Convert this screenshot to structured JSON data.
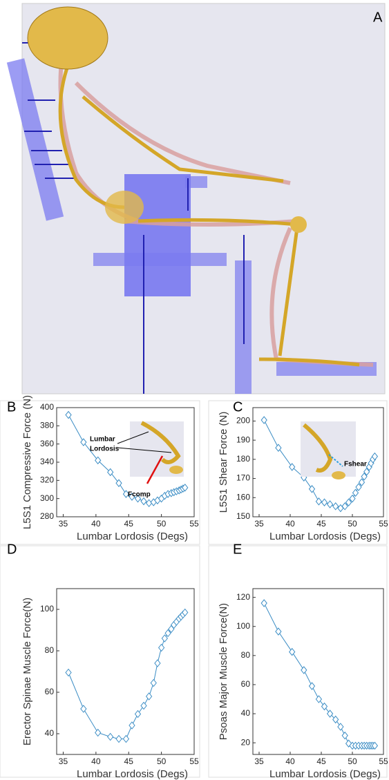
{
  "panel_label": "A",
  "chart_data": [
    {
      "type": "line",
      "panel_label": "B",
      "xlabel": "Lumbar Lordosis (Degs)",
      "ylabel": "L5S1 Compressive Force (N)",
      "color": "#3a8cc4",
      "x": [
        35.8,
        38.1,
        40.3,
        42.2,
        43.5,
        44.6,
        45.5,
        46.4,
        47.3,
        48.1,
        48.8,
        49.4,
        50.0,
        50.5,
        51.0,
        51.5,
        51.9,
        52.3,
        52.7,
        53.0,
        53.3,
        53.6
      ],
      "values": [
        392,
        362,
        342,
        329,
        317,
        305,
        302,
        300,
        297,
        295,
        296,
        298,
        300,
        303,
        305,
        306,
        307,
        308,
        309,
        310,
        311,
        312
      ],
      "xlim": [
        34,
        55
      ],
      "xticks": [
        35,
        40,
        45,
        50,
        55
      ],
      "ylim": [
        280,
        400
      ],
      "yticks": [
        280,
        300,
        320,
        340,
        360,
        380,
        400
      ],
      "annotations": [
        "Lumbar",
        "Lordosis",
        "Fcomp"
      ]
    },
    {
      "type": "line",
      "panel_label": "C",
      "xlabel": "Lumbar Lordosis (Degs)",
      "ylabel": "L5S1 Shear Force (N)",
      "color": "#3a8cc4",
      "x": [
        35.8,
        38.1,
        40.3,
        42.2,
        43.5,
        44.6,
        45.5,
        46.4,
        47.3,
        48.1,
        48.8,
        49.4,
        50.0,
        50.5,
        51.0,
        51.5,
        51.9,
        52.3,
        52.7,
        53.0,
        53.3,
        53.6
      ],
      "values": [
        200.5,
        186,
        176,
        170.5,
        164.5,
        158,
        157.5,
        156.5,
        155.5,
        154.5,
        155.5,
        157.5,
        159.5,
        162.5,
        165.5,
        168,
        171,
        173.5,
        176,
        178,
        180,
        181.5
      ],
      "xlim": [
        34,
        55
      ],
      "xticks": [
        35,
        40,
        45,
        50,
        55
      ],
      "ylim": [
        150,
        207
      ],
      "yticks": [
        150,
        160,
        170,
        180,
        190,
        200
      ],
      "annotations": [
        "Fshear"
      ]
    },
    {
      "type": "line",
      "panel_label": "D",
      "xlabel": "Lumbar Lordosis (Degs)",
      "ylabel": "Erector Spinae Muscle Force(N)",
      "color": "#3a8cc4",
      "x": [
        35.8,
        38.1,
        40.3,
        42.2,
        43.5,
        44.6,
        45.5,
        46.4,
        47.3,
        48.1,
        48.8,
        49.4,
        50.0,
        50.5,
        51.0,
        51.5,
        51.9,
        52.3,
        52.7,
        53.0,
        53.3,
        53.6
      ],
      "values": [
        69.5,
        52,
        40.5,
        38.5,
        37.5,
        37.5,
        44,
        49.5,
        53.5,
        58,
        64.5,
        74,
        81.5,
        86,
        88.5,
        90.5,
        92.5,
        94,
        95.5,
        96.5,
        97.5,
        98.5
      ],
      "xlim": [
        34,
        55
      ],
      "xticks": [
        35,
        40,
        45,
        50,
        55
      ],
      "ylim": [
        30,
        110
      ],
      "yticks": [
        40,
        60,
        80,
        100
      ]
    },
    {
      "type": "line",
      "panel_label": "E",
      "xlabel": "Lumbar Lordosis (Degs)",
      "ylabel": "Psoas Major Muscle Force(N)",
      "color": "#3a8cc4",
      "x": [
        35.8,
        38.1,
        40.3,
        42.2,
        43.5,
        44.6,
        45.5,
        46.4,
        47.3,
        48.1,
        48.8,
        49.4,
        50.0,
        50.5,
        51.0,
        51.5,
        51.9,
        52.3,
        52.7,
        53.0,
        53.3,
        53.6
      ],
      "values": [
        116,
        96.5,
        82.5,
        70,
        59,
        50,
        45,
        40,
        36,
        31,
        25,
        19.5,
        18,
        18,
        18,
        18,
        18,
        18,
        18,
        18,
        18,
        18
      ],
      "xlim": [
        34,
        55
      ],
      "xticks": [
        35,
        40,
        45,
        50,
        55
      ],
      "ylim": [
        12,
        126
      ],
      "yticks": [
        20,
        40,
        60,
        80,
        100,
        120
      ]
    }
  ]
}
